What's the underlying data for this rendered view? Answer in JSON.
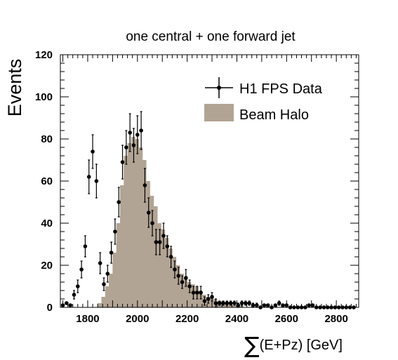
{
  "chart_data": {
    "type": "bar",
    "title": "one central + one forward jet",
    "xlabel": "(E+Pz) [GeV]",
    "xlabel_symbol": "∑",
    "ylabel": "Events",
    "xlim": [
      1690,
      2890
    ],
    "ylim": [
      0,
      120
    ],
    "xticks": [
      1800,
      2000,
      2200,
      2400,
      2600,
      2800
    ],
    "yticks": [
      0,
      20,
      40,
      60,
      80,
      100,
      120
    ],
    "grid": false,
    "legend_position": "top-right",
    "colors": {
      "halo": "#b2a494",
      "data": "#000000",
      "axis": "#000000"
    },
    "series": [
      {
        "name": "Beam Halo",
        "kind": "histogram",
        "bin_width": 15,
        "bins": [
          [
            1840,
            2
          ],
          [
            1855,
            5
          ],
          [
            1870,
            10
          ],
          [
            1885,
            16
          ],
          [
            1900,
            26
          ],
          [
            1915,
            40
          ],
          [
            1930,
            58
          ],
          [
            1945,
            72
          ],
          [
            1960,
            78
          ],
          [
            1975,
            81
          ],
          [
            1990,
            80
          ],
          [
            2005,
            76
          ],
          [
            2020,
            70
          ],
          [
            2035,
            60
          ],
          [
            2050,
            53
          ],
          [
            2065,
            48
          ],
          [
            2080,
            40
          ],
          [
            2095,
            37
          ],
          [
            2110,
            33
          ],
          [
            2125,
            28
          ],
          [
            2140,
            24
          ],
          [
            2155,
            20
          ],
          [
            2170,
            16
          ],
          [
            2185,
            14
          ],
          [
            2200,
            12
          ],
          [
            2215,
            11
          ],
          [
            2230,
            10
          ],
          [
            2245,
            8
          ],
          [
            2260,
            6
          ],
          [
            2275,
            5
          ],
          [
            2290,
            5
          ],
          [
            2305,
            4
          ],
          [
            2320,
            3
          ],
          [
            2335,
            3
          ],
          [
            2350,
            2
          ],
          [
            2365,
            2
          ],
          [
            2380,
            1
          ],
          [
            2395,
            1
          ],
          [
            2410,
            1
          ]
        ]
      },
      {
        "name": "H1 FPS Data",
        "kind": "points",
        "points": [
          [
            1700,
            1,
            0
          ],
          [
            1715,
            2,
            0
          ],
          [
            1730,
            1,
            0
          ],
          [
            1745,
            6,
            2
          ],
          [
            1760,
            10,
            3
          ],
          [
            1775,
            18,
            4
          ],
          [
            1790,
            29,
            5
          ],
          [
            1805,
            62,
            8
          ],
          [
            1820,
            74,
            8
          ],
          [
            1835,
            60,
            8
          ],
          [
            1850,
            21,
            5
          ],
          [
            1865,
            11,
            3
          ],
          [
            1880,
            16,
            4
          ],
          [
            1895,
            26,
            5
          ],
          [
            1910,
            36,
            6
          ],
          [
            1925,
            50,
            7
          ],
          [
            1940,
            69,
            8
          ],
          [
            1955,
            76,
            8
          ],
          [
            1970,
            83,
            9
          ],
          [
            1985,
            77,
            8
          ],
          [
            2000,
            82,
            9
          ],
          [
            2015,
            84,
            9
          ],
          [
            2030,
            58,
            8
          ],
          [
            2045,
            45,
            7
          ],
          [
            2060,
            40,
            6
          ],
          [
            2075,
            31,
            6
          ],
          [
            2090,
            31,
            6
          ],
          [
            2105,
            34,
            6
          ],
          [
            2120,
            29,
            5
          ],
          [
            2135,
            24,
            5
          ],
          [
            2150,
            18,
            4
          ],
          [
            2165,
            15,
            4
          ],
          [
            2180,
            12,
            3
          ],
          [
            2195,
            14,
            4
          ],
          [
            2210,
            10,
            3
          ],
          [
            2225,
            7,
            3
          ],
          [
            2240,
            7,
            3
          ],
          [
            2255,
            7,
            3
          ],
          [
            2270,
            3,
            2
          ],
          [
            2285,
            4,
            2
          ],
          [
            2300,
            5,
            2
          ],
          [
            2315,
            2,
            2
          ],
          [
            2330,
            2,
            1
          ],
          [
            2345,
            2,
            1
          ],
          [
            2360,
            2,
            1
          ],
          [
            2375,
            2,
            1
          ],
          [
            2390,
            2,
            1
          ],
          [
            2405,
            1,
            1
          ],
          [
            2420,
            2,
            1
          ],
          [
            2435,
            2,
            1
          ],
          [
            2450,
            2,
            1
          ],
          [
            2465,
            1,
            1
          ],
          [
            2480,
            1,
            1
          ],
          [
            2495,
            0,
            0
          ],
          [
            2510,
            1,
            0
          ],
          [
            2525,
            1,
            0
          ],
          [
            2540,
            0,
            0
          ],
          [
            2555,
            1,
            0
          ],
          [
            2570,
            2,
            1
          ],
          [
            2585,
            1,
            0
          ],
          [
            2600,
            1,
            0
          ],
          [
            2615,
            0,
            0
          ],
          [
            2630,
            0,
            0
          ],
          [
            2645,
            0,
            0
          ],
          [
            2660,
            0,
            0
          ],
          [
            2675,
            0,
            0
          ],
          [
            2690,
            1,
            0
          ],
          [
            2705,
            1,
            0
          ],
          [
            2720,
            0,
            0
          ],
          [
            2735,
            0,
            0
          ],
          [
            2750,
            0,
            0
          ],
          [
            2765,
            0,
            0
          ],
          [
            2780,
            0,
            0
          ],
          [
            2795,
            0,
            0
          ],
          [
            2810,
            0,
            0
          ],
          [
            2825,
            0,
            0
          ],
          [
            2840,
            0,
            0
          ],
          [
            2855,
            0,
            0
          ],
          [
            2870,
            0,
            0
          ]
        ]
      }
    ]
  }
}
